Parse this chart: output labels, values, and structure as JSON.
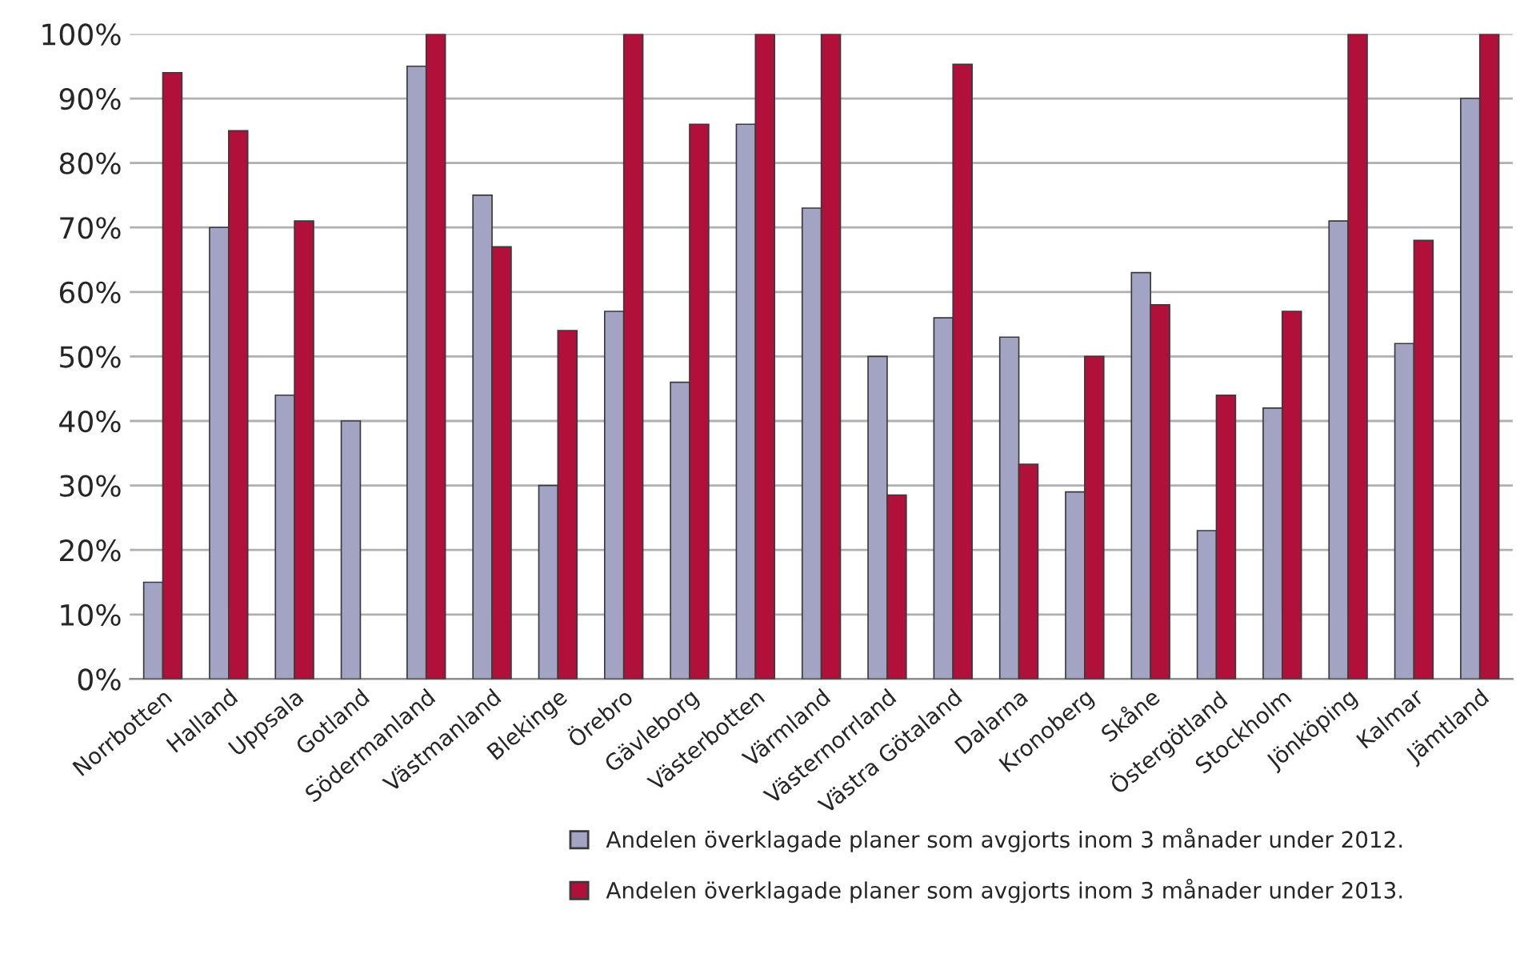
{
  "chart_data": {
    "type": "bar",
    "categories": [
      "Norrbotten",
      "Halland",
      "Uppsala",
      "Gotland",
      "Södermanland",
      "Västmanland",
      "Blekinge",
      "Örebro",
      "Gävleborg",
      "Västerbotten",
      "Värmland",
      "Västernorrland",
      "Västra Götaland",
      "Dalarna",
      "Kronoberg",
      "Skåne",
      "Östergötland",
      "Stockholm",
      "Jönköping",
      "Kalmar",
      "Jämtland"
    ],
    "series": [
      {
        "name": "Andelen överklagade planer som avgjorts inom 3 månader under 2012.",
        "color": "#a3a3c3",
        "values": [
          15,
          70,
          44,
          40,
          95,
          75,
          30,
          57,
          46,
          86,
          73,
          50,
          56,
          53,
          29,
          63,
          23,
          42,
          71,
          52,
          90
        ]
      },
      {
        "name": "Andelen överklagade planer som avgjorts inom 3 månader under 2013.",
        "color": "#b0103a",
        "values": [
          94,
          85,
          71,
          null,
          100,
          67,
          54,
          100,
          86,
          100,
          100,
          28.5,
          95.3,
          33.3,
          50,
          58,
          44,
          57,
          100,
          68,
          100
        ]
      }
    ],
    "ylim": [
      0,
      100
    ],
    "yticks": [
      {
        "value": 0,
        "label": "0%"
      },
      {
        "value": 10,
        "label": "10%"
      },
      {
        "value": 20,
        "label": "20%"
      },
      {
        "value": 30,
        "label": "30%"
      },
      {
        "value": 40,
        "label": "40%"
      },
      {
        "value": 50,
        "label": "50%"
      },
      {
        "value": 60,
        "label": "60%"
      },
      {
        "value": 70,
        "label": "70%"
      },
      {
        "value": 80,
        "label": "80%"
      },
      {
        "value": 90,
        "label": "90%"
      },
      {
        "value": 100,
        "label": "100%"
      }
    ],
    "grid": "y",
    "legend": "bottom"
  }
}
